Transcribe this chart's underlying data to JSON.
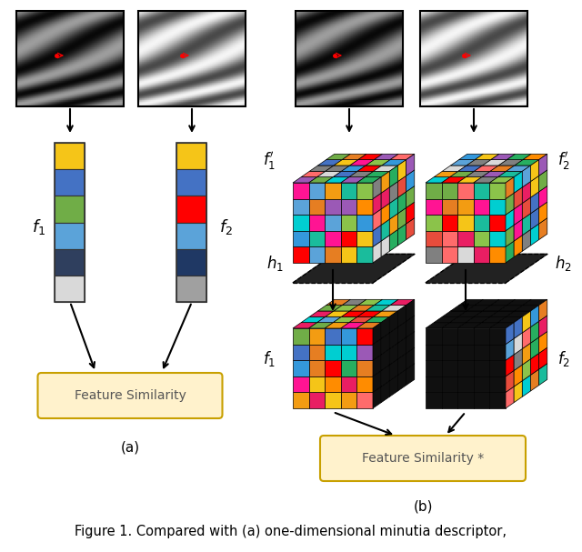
{
  "title": "Figure 1. Compared with (a) one-dimensional minutia descriptor,",
  "section_a_label": "(a)",
  "section_b_label": "(b)",
  "f1_colors": [
    "#F5C518",
    "#4472C4",
    "#70AD47",
    "#5BA3D9",
    "#2F3F5E",
    "#D9D9D9"
  ],
  "f2_colors": [
    "#F5C518",
    "#4472C4",
    "#FF0000",
    "#5BA3D9",
    "#1F3864",
    "#A0A0A0"
  ],
  "feature_sim_box_color": "#FFF2CC",
  "feature_sim_box_edge": "#C8A000",
  "feature_sim_text": "Feature Similarity",
  "feature_sim_star_text": "Feature Similarity *",
  "f1_label": "$f_1$",
  "f2_label": "$f_2$",
  "f1_prime_label": "$f_1'$",
  "f2_prime_label": "$f_2'$",
  "h1_label": "$h_1$",
  "h2_label": "$h_2$",
  "f1_bottom_label": "$f_1$",
  "f2_bottom_label": "$f_2$",
  "background_color": "#FFFFFF",
  "palette": [
    "#F5C518",
    "#FF8C00",
    "#4472C4",
    "#70AD47",
    "#5BA3D9",
    "#D9D9D9",
    "#808080",
    "#FF6B6B",
    "#FF1493",
    "#FF0000",
    "#00CED1",
    "#9B59B6",
    "#E74C3C",
    "#27AE60",
    "#F39C12",
    "#E67E22",
    "#3498DB",
    "#1ABC9C",
    "#E91E63",
    "#8BC34A"
  ]
}
